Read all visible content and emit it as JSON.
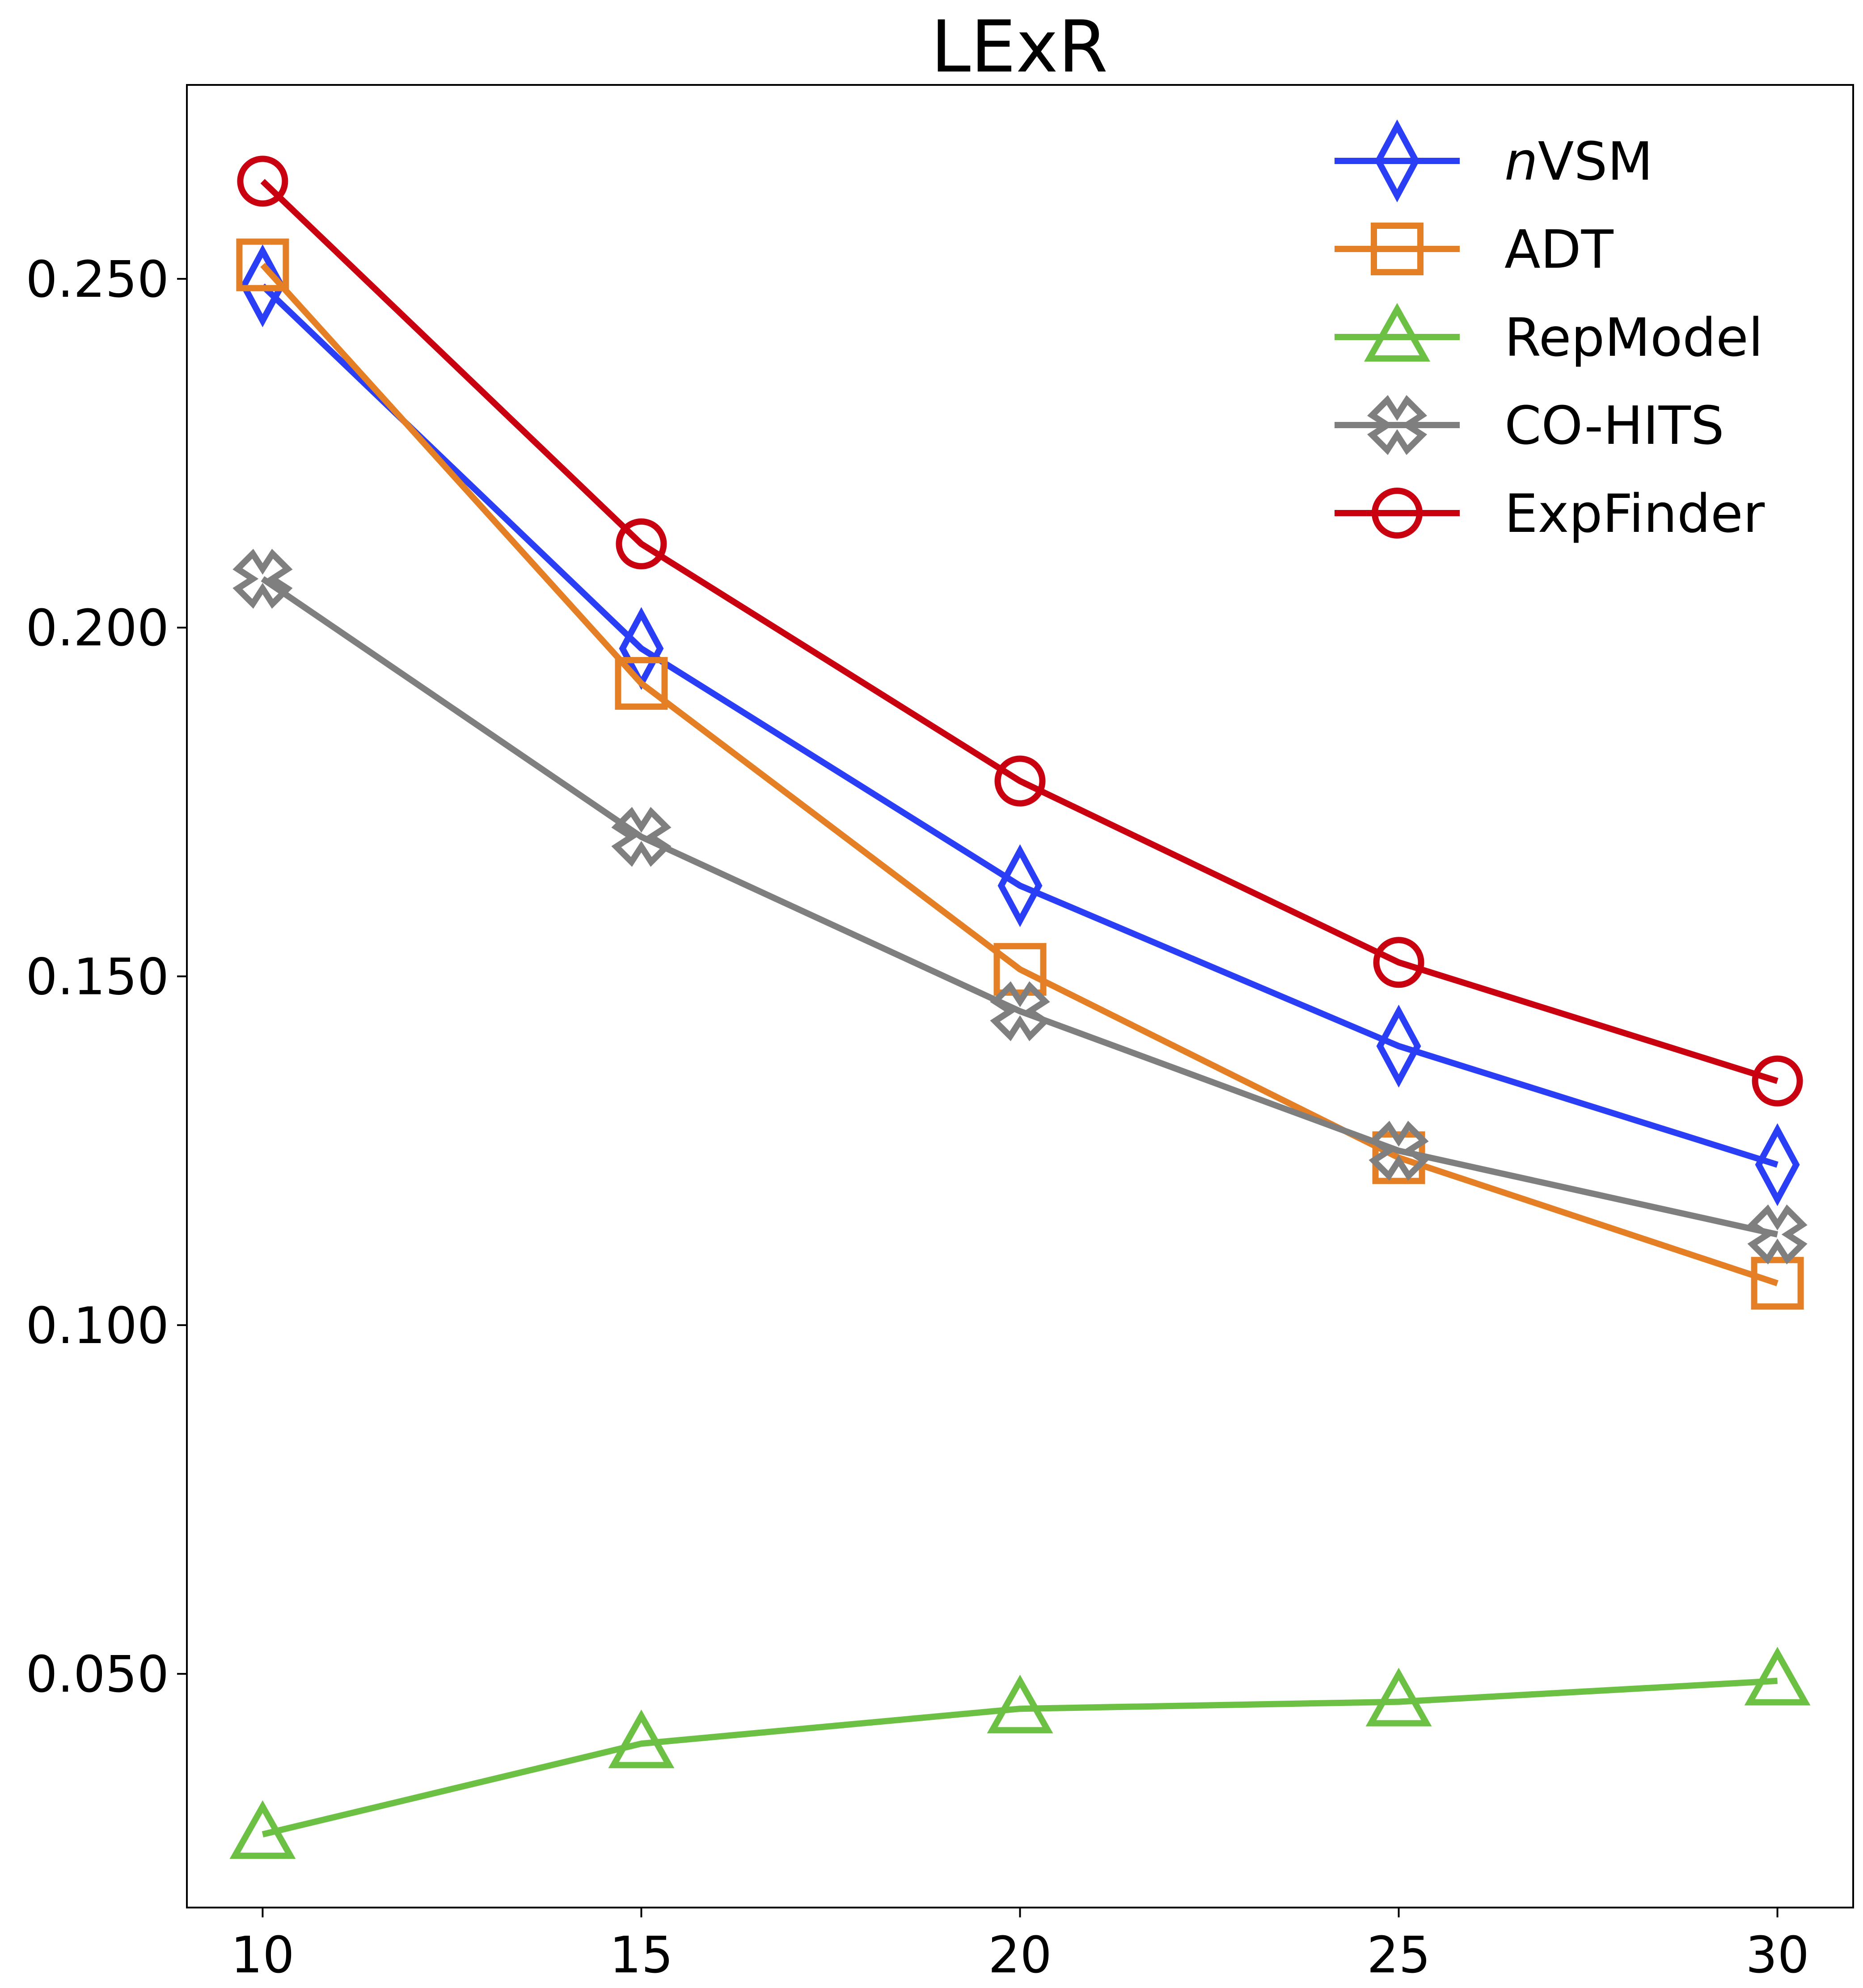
{
  "chart_data": {
    "type": "line",
    "title": "LExR",
    "xlabel": "",
    "ylabel": "",
    "x": [
      10,
      15,
      20,
      25,
      30
    ],
    "xticks": [
      "10",
      "15",
      "20",
      "25",
      "30"
    ],
    "yticks": [
      0.05,
      0.1,
      0.15,
      0.2,
      0.25
    ],
    "ytick_labels": [
      "0.050",
      "0.100",
      "0.150",
      "0.200",
      "0.250"
    ],
    "xlim": [
      9,
      31
    ],
    "ylim": [
      0.0165,
      0.2778
    ],
    "grid": false,
    "legend_position": "top-right",
    "series": [
      {
        "name": "nVSM",
        "name_prefix": "n",
        "name_suffix": "VSM",
        "color": "#2a3ef5",
        "marker": "thin-diamond",
        "values": [
          0.249,
          0.197,
          0.163,
          0.14,
          0.123
        ]
      },
      {
        "name": "ADT",
        "color": "#e47f26",
        "marker": "square",
        "values": [
          0.252,
          0.192,
          0.151,
          0.124,
          0.106
        ]
      },
      {
        "name": "RepModel",
        "color": "#6cc144",
        "marker": "triangle",
        "values": [
          0.027,
          0.04,
          0.045,
          0.046,
          0.049
        ]
      },
      {
        "name": "CO-HITS",
        "color": "#7f7f7f",
        "marker": "x-cross",
        "values": [
          0.207,
          0.17,
          0.145,
          0.125,
          0.113
        ]
      },
      {
        "name": "ExpFinder",
        "color": "#c8000f",
        "marker": "circle",
        "values": [
          0.264,
          0.212,
          0.178,
          0.152,
          0.135
        ]
      }
    ]
  }
}
